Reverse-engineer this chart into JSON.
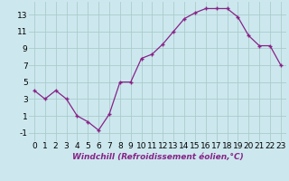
{
  "x": [
    0,
    1,
    2,
    3,
    4,
    5,
    6,
    7,
    8,
    9,
    10,
    11,
    12,
    13,
    14,
    15,
    16,
    17,
    18,
    19,
    20,
    21,
    22,
    23
  ],
  "y": [
    4,
    3,
    4,
    3,
    1,
    0.3,
    -0.7,
    1.2,
    5,
    5,
    7.8,
    8.3,
    9.5,
    11,
    12.5,
    13.2,
    13.7,
    13.7,
    13.7,
    12.7,
    10.5,
    9.3,
    9.3,
    7
  ],
  "line_color": "#882288",
  "marker": "+",
  "marker_color": "#882288",
  "bg_color": "#cce8ee",
  "grid_color": "#aacccc",
  "xlabel": "Windchill (Refroidissement éolien,°C)",
  "xlabel_fontsize": 6.5,
  "tick_fontsize": 6.5,
  "ylim": [
    -2,
    14.5
  ],
  "yticks": [
    -1,
    1,
    3,
    5,
    7,
    9,
    11,
    13
  ],
  "xlim": [
    -0.5,
    23.5
  ],
  "xticks": [
    0,
    1,
    2,
    3,
    4,
    5,
    6,
    7,
    8,
    9,
    10,
    11,
    12,
    13,
    14,
    15,
    16,
    17,
    18,
    19,
    20,
    21,
    22,
    23
  ]
}
